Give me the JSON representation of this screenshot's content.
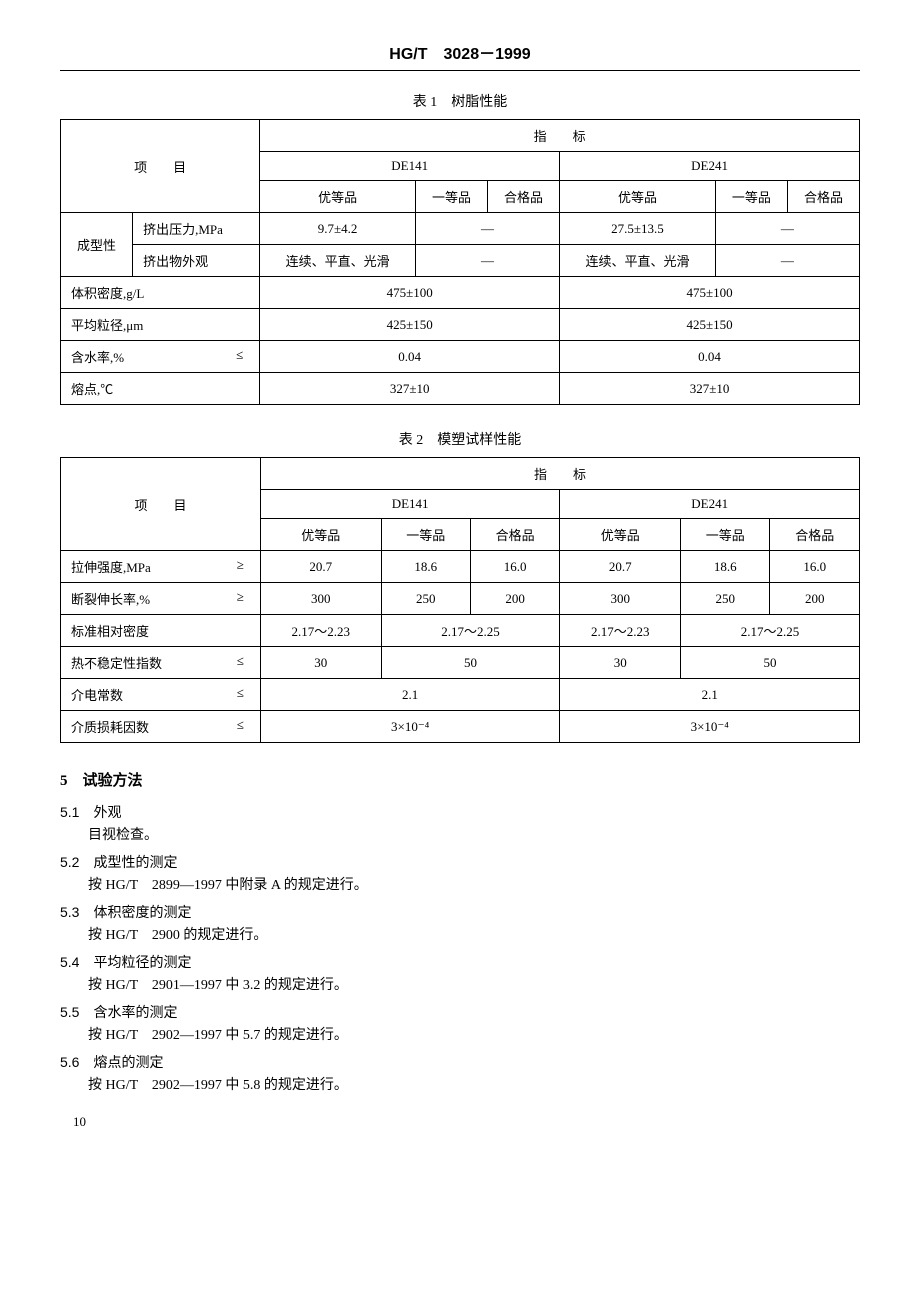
{
  "header": "HG/T　3028－1999",
  "table1": {
    "title": "表 1　树脂性能",
    "col_header_top": "指　　标",
    "col_item": "项　　目",
    "group1": "DE141",
    "group2": "DE241",
    "grade_a": "优等品",
    "grade_b": "一等品",
    "grade_c": "合格品",
    "rows": [
      {
        "group": "成型性",
        "label": "挤出压力,MPa",
        "v1": "9.7±4.2",
        "v1b": "—",
        "v2": "27.5±13.5",
        "v2b": "—"
      },
      {
        "group": "",
        "label": "挤出物外观",
        "v1": "连续、平直、光滑",
        "v1b": "—",
        "v2": "连续、平直、光滑",
        "v2b": "—"
      },
      {
        "label": "体积密度,g/L",
        "v1": "475±100",
        "v2": "475±100"
      },
      {
        "label": "平均粒径,μm",
        "v1": "425±150",
        "v2": "425±150"
      },
      {
        "label": "含水率,%",
        "ineq": "≤",
        "v1": "0.04",
        "v2": "0.04"
      },
      {
        "label": "熔点,℃",
        "v1": "327±10",
        "v2": "327±10"
      }
    ]
  },
  "table2": {
    "title": "表 2　模塑试样性能",
    "col_header_top": "指　　标",
    "col_item": "项　　目",
    "group1": "DE141",
    "group2": "DE241",
    "grade_a": "优等品",
    "grade_b": "一等品",
    "grade_c": "合格品",
    "rows": [
      {
        "label": "拉伸强度,MPa",
        "ineq": "≥",
        "a1": "20.7",
        "b1": "18.6",
        "c1": "16.0",
        "a2": "20.7",
        "b2": "18.6",
        "c2": "16.0"
      },
      {
        "label": "断裂伸长率,%",
        "ineq": "≥",
        "a1": "300",
        "b1": "250",
        "c1": "200",
        "a2": "300",
        "b2": "250",
        "c2": "200"
      },
      {
        "label": "标准相对密度",
        "a1": "2.17～2.23",
        "bc1": "2.17～2.25",
        "a2": "2.17～2.23",
        "bc2": "2.17～2.25"
      },
      {
        "label": "热不稳定性指数",
        "ineq": "≤",
        "a1": "30",
        "bc1": "50",
        "a2": "30",
        "bc2": "50"
      },
      {
        "label": "介电常数",
        "ineq": "≤",
        "all1": "2.1",
        "all2": "2.1"
      },
      {
        "label": "介质损耗因数",
        "ineq": "≤",
        "all1": "3×10⁻⁴",
        "all2": "3×10⁻⁴"
      }
    ]
  },
  "section5": {
    "heading": "5　试验方法",
    "items": [
      {
        "num": "5.1",
        "title": "外观",
        "body": "目视检查。"
      },
      {
        "num": "5.2",
        "title": "成型性的测定",
        "body": "按 HG/T　2899—1997 中附录 A 的规定进行。"
      },
      {
        "num": "5.3",
        "title": "体积密度的测定",
        "body": "按 HG/T　2900 的规定进行。"
      },
      {
        "num": "5.4",
        "title": "平均粒径的测定",
        "body": "按 HG/T　2901—1997 中 3.2 的规定进行。"
      },
      {
        "num": "5.5",
        "title": "含水率的测定",
        "body": "按 HG/T　2902—1997 中 5.7 的规定进行。"
      },
      {
        "num": "5.6",
        "title": "熔点的测定",
        "body": "按 HG/T　2902—1997 中 5.8 的规定进行。"
      }
    ]
  },
  "page_number": "10"
}
